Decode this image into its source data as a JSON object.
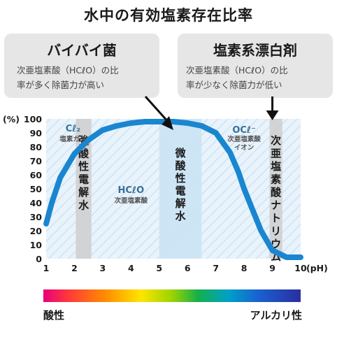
{
  "title": "水中の有効塩素存在比率",
  "cards": {
    "left": {
      "title": "バイバイ菌",
      "desc_line1": "次亜塩素酸（HCℓO）の比",
      "desc_line2": "率が多く除菌力が高い"
    },
    "right": {
      "title": "塩素系漂白剤",
      "desc_line1": "次亜塩素酸（HCℓO）の比",
      "desc_line2": "率が少なく除菌力が低い"
    }
  },
  "chart_data": {
    "type": "area",
    "ylabel": "(%)",
    "xlabel": "(pH)",
    "xlim": [
      1,
      10
    ],
    "ylim": [
      0,
      100
    ],
    "x_ticks": [
      1,
      2,
      3,
      4,
      5,
      6,
      7,
      8,
      9,
      10
    ],
    "y_ticks": [
      0,
      10,
      20,
      30,
      40,
      50,
      60,
      70,
      80,
      90,
      100
    ],
    "series": [
      {
        "x": [
          1,
          1.2,
          1.5,
          2,
          2.5,
          3,
          3.5,
          4,
          4.5,
          5,
          5.5,
          6,
          6.5,
          7,
          7.5,
          7.8,
          8,
          8.3,
          8.6,
          9,
          9.5,
          10
        ],
        "values": [
          25,
          40,
          58,
          75,
          85,
          92,
          95,
          97,
          98,
          98,
          98,
          97,
          95,
          90,
          76,
          62,
          50,
          35,
          20,
          6,
          1,
          1
        ]
      }
    ],
    "species_labels": [
      {
        "line1": "Cℓ₂",
        "line2": "塩素ガス",
        "x": 1.95
      },
      {
        "line1": "HCℓO",
        "line2": "次亜塩素酸",
        "x": 4.0
      },
      {
        "line1": "OCℓ⁻",
        "line2": "次亜塩素酸",
        "line3": "イオン",
        "x": 8.0
      }
    ],
    "bands": [
      {
        "label": "強酸性電解水",
        "x_start": 2.05,
        "x_end": 2.6,
        "kind": "gray"
      },
      {
        "label": "微酸性電解水",
        "x_start": 5.0,
        "x_end": 6.5,
        "kind": "blue"
      },
      {
        "label": "次亜塩素酸ナトリウム",
        "x_start": 8.9,
        "x_end": 9.35,
        "kind": "gray"
      }
    ],
    "annotations": [
      {
        "from_card": "left",
        "to_x": 5.5
      },
      {
        "from_card": "right",
        "to_x": 9.0
      }
    ],
    "color": "#1a86d0"
  },
  "spectrum": {
    "left_label": "酸性",
    "right_label": "アルカリ性"
  }
}
